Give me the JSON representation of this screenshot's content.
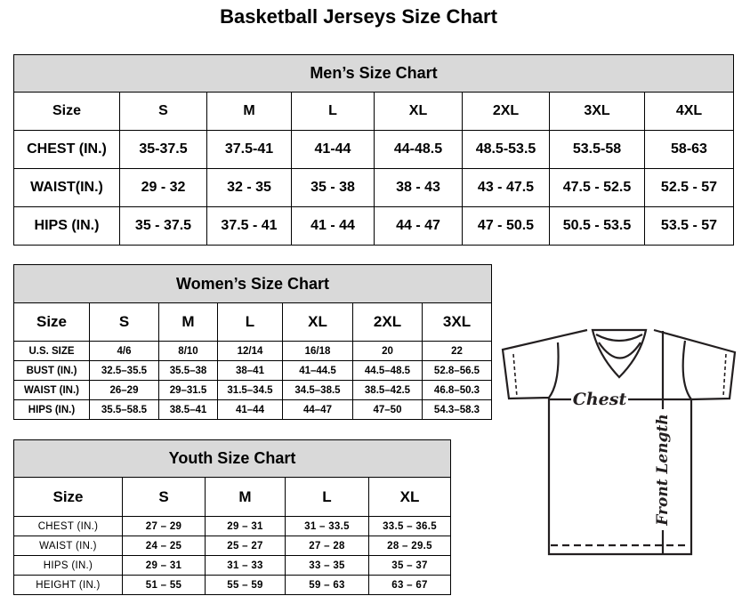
{
  "title": "Basketball Jerseys Size Chart",
  "men": {
    "title": "Men’s Size Chart",
    "rows": [
      [
        "Size",
        "S",
        "M",
        "L",
        "XL",
        "2XL",
        "3XL",
        "4XL"
      ],
      [
        "CHEST (IN.)",
        "35-37.5",
        "37.5-41",
        "41-44",
        "44-48.5",
        "48.5-53.5",
        "53.5-58",
        "58-63"
      ],
      [
        "WAIST(IN.)",
        "29 - 32",
        "32 - 35",
        "35 - 38",
        "38 - 43",
        "43 - 47.5",
        "47.5 - 52.5",
        "52.5 - 57"
      ],
      [
        "HIPS (IN.)",
        "35 - 37.5",
        "37.5 - 41",
        "41 - 44",
        "44 - 47",
        "47 - 50.5",
        "50.5 - 53.5",
        "53.5 - 57"
      ]
    ]
  },
  "women": {
    "title": "Women’s Size Chart",
    "rows": [
      [
        "Size",
        "S",
        "M",
        "L",
        "XL",
        "2XL",
        "3XL"
      ],
      [
        "U.S. SIZE",
        "4/6",
        "8/10",
        "12/14",
        "16/18",
        "20",
        "22"
      ],
      [
        "BUST (IN.)",
        "32.5–35.5",
        "35.5–38",
        "38–41",
        "41–44.5",
        "44.5–48.5",
        "52.8–56.5"
      ],
      [
        "WAIST (IN.)",
        "26–29",
        "29–31.5",
        "31.5–34.5",
        "34.5–38.5",
        "38.5–42.5",
        "46.8–50.3"
      ],
      [
        "HIPS (IN.)",
        "35.5–58.5",
        "38.5–41",
        "41–44",
        "44–47",
        "47–50",
        "54.3–58.3"
      ]
    ]
  },
  "youth": {
    "title": "Youth Size Chart",
    "rows": [
      [
        "Size",
        "S",
        "M",
        "L",
        "XL"
      ],
      [
        "CHEST (IN.)",
        "27 – 29",
        "29 – 31",
        "31 – 33.5",
        "33.5 – 36.5"
      ],
      [
        "WAIST (IN.)",
        "24 – 25",
        "25 – 27",
        "27 – 28",
        "28 – 29.5"
      ],
      [
        "HIPS (IN.)",
        "29 – 31",
        "31 – 33",
        "33 – 35",
        "35 – 37"
      ],
      [
        "HEIGHT (IN.)",
        "51 – 55",
        "55 – 59",
        "59 – 63",
        "63 – 67"
      ]
    ]
  },
  "diagram": {
    "chest_label": "Chest",
    "length_label": "Front Length"
  }
}
